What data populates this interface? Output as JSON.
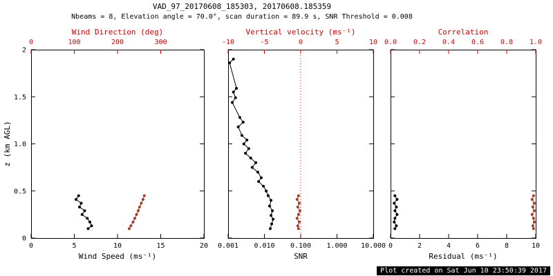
{
  "header": {
    "title": "VAD_97_20170608_185303, 20170608.185359",
    "subtitle": "Nbeams = 8, Elevation angle = 70.0°, scan duration = 89.9 s, SNR Threshold = 0.008"
  },
  "footer": {
    "created": "Plot created on Sat Jun 10 23:50:39 2017"
  },
  "colors": {
    "black": "#000000",
    "axis_red": "#cc0000",
    "data_red": "#a33d2a"
  },
  "chart_data": [
    {
      "name": "wind",
      "type": "scatter",
      "y_axis": {
        "label": "z (km AGL)",
        "range": [
          0,
          2
        ],
        "ticks": [
          0,
          0.5,
          1,
          1.5,
          2
        ],
        "tick_labels": [
          "0",
          "0.5",
          "1.0",
          "1.5",
          "2"
        ]
      },
      "bottom_axis": {
        "label": "Wind Speed (ms⁻¹)",
        "scale": "linear",
        "range": [
          0,
          20
        ],
        "ticks": [
          0,
          5,
          10,
          15,
          20
        ],
        "tick_labels": [
          "0",
          "5",
          "10",
          "15",
          "20"
        ]
      },
      "top_axis": {
        "label": "Wind Direction (deg)",
        "scale": "linear",
        "range": [
          0,
          400
        ],
        "ticks": [
          0,
          100,
          200,
          300
        ],
        "tick_labels": [
          "0",
          "100",
          "200",
          "300"
        ]
      },
      "series": [
        {
          "name": "wind-speed",
          "axis": "bottom",
          "color": "black",
          "z": [
            0.45,
            0.41,
            0.37,
            0.33,
            0.29,
            0.25,
            0.21,
            0.17,
            0.13,
            0.1
          ],
          "values": [
            5.5,
            5.2,
            5.8,
            5.6,
            6.2,
            5.9,
            6.5,
            6.8,
            7.0,
            6.6
          ]
        },
        {
          "name": "wind-direction",
          "axis": "top",
          "color": "data_red",
          "z": [
            0.45,
            0.41,
            0.37,
            0.33,
            0.29,
            0.25,
            0.21,
            0.17,
            0.13,
            0.1
          ],
          "values": [
            262,
            259,
            255,
            251,
            248,
            244,
            240,
            236,
            231,
            227
          ]
        }
      ]
    },
    {
      "name": "snr",
      "type": "scatter",
      "y_axis": {
        "range": [
          0,
          2
        ],
        "ticks": [
          0,
          0.5,
          1,
          1.5,
          2
        ]
      },
      "bottom_axis": {
        "label": "SNR",
        "scale": "log",
        "range": [
          0.001,
          10
        ],
        "ticks": [
          0.001,
          0.01,
          0.1,
          1,
          10
        ],
        "tick_labels": [
          "0.001",
          "0.010",
          "0.100",
          "1.000",
          "10.000"
        ]
      },
      "top_axis": {
        "label": "Vertical velocity (ms⁻¹)",
        "scale": "linear",
        "range": [
          -10,
          10
        ],
        "ticks": [
          -10,
          -5,
          0,
          5,
          10
        ],
        "tick_labels": [
          "-10",
          "-5",
          "0",
          "5",
          "10"
        ]
      },
      "refline": {
        "axis": "top",
        "value": 0,
        "style": "dotted"
      },
      "series": [
        {
          "name": "snr",
          "axis": "bottom",
          "color": "black",
          "z": [
            1.9,
            1.86,
            1.59,
            1.55,
            1.49,
            1.44,
            1.28,
            1.23,
            1.18,
            1.09,
            1.04,
            1.0,
            0.95,
            0.9,
            0.85,
            0.8,
            0.75,
            0.7,
            0.64,
            0.6,
            0.55,
            0.5,
            0.45,
            0.4,
            0.34,
            0.29,
            0.24,
            0.2,
            0.15,
            0.1
          ],
          "values": [
            0.0014,
            0.0011,
            0.0017,
            0.0014,
            0.0016,
            0.0013,
            0.0021,
            0.0026,
            0.0019,
            0.0024,
            0.0033,
            0.0027,
            0.0037,
            0.003,
            0.0042,
            0.0058,
            0.0046,
            0.0066,
            0.0082,
            0.0069,
            0.0094,
            0.0112,
            0.0127,
            0.0152,
            0.0139,
            0.0166,
            0.0152,
            0.0174,
            0.0159,
            0.0145
          ]
        },
        {
          "name": "vertical-velocity",
          "axis": "top",
          "color": "data_red",
          "z": [
            0.45,
            0.41,
            0.37,
            0.33,
            0.29,
            0.25,
            0.21,
            0.17,
            0.13,
            0.1
          ],
          "values": [
            -0.3,
            -0.5,
            -0.2,
            -0.4,
            -0.1,
            -0.3,
            -0.5,
            -0.2,
            -0.4,
            -0.3
          ]
        }
      ]
    },
    {
      "name": "residual",
      "type": "scatter",
      "y_axis": {
        "range": [
          0,
          2
        ],
        "ticks": [
          0,
          0.5,
          1,
          1.5,
          2
        ]
      },
      "bottom_axis": {
        "label": "Residual (ms⁻¹)",
        "scale": "linear",
        "range": [
          0,
          10
        ],
        "ticks": [
          0,
          2,
          4,
          6,
          8,
          10
        ],
        "tick_labels": [
          "0",
          "2",
          "4",
          "6",
          "8",
          "10"
        ]
      },
      "top_axis": {
        "label": "Correlation",
        "scale": "linear",
        "range": [
          0,
          1
        ],
        "ticks": [
          0,
          0.2,
          0.4,
          0.6,
          0.8,
          1
        ],
        "tick_labels": [
          "0.0",
          "0.2",
          "0.4",
          "0.6",
          "0.8",
          "1.0"
        ]
      },
      "series": [
        {
          "name": "residual",
          "axis": "bottom",
          "color": "black",
          "z": [
            0.45,
            0.41,
            0.37,
            0.33,
            0.29,
            0.25,
            0.21,
            0.17,
            0.13,
            0.1
          ],
          "values": [
            0.3,
            0.45,
            0.25,
            0.4,
            0.3,
            0.45,
            0.3,
            0.25,
            0.4,
            0.3
          ]
        },
        {
          "name": "correlation",
          "axis": "top",
          "color": "data_red",
          "z": [
            0.45,
            0.41,
            0.37,
            0.33,
            0.29,
            0.25,
            0.21,
            0.17,
            0.13,
            0.1
          ],
          "values": [
            0.985,
            0.975,
            0.99,
            0.98,
            0.99,
            0.975,
            0.985,
            0.99,
            0.98,
            0.985
          ]
        }
      ]
    }
  ]
}
